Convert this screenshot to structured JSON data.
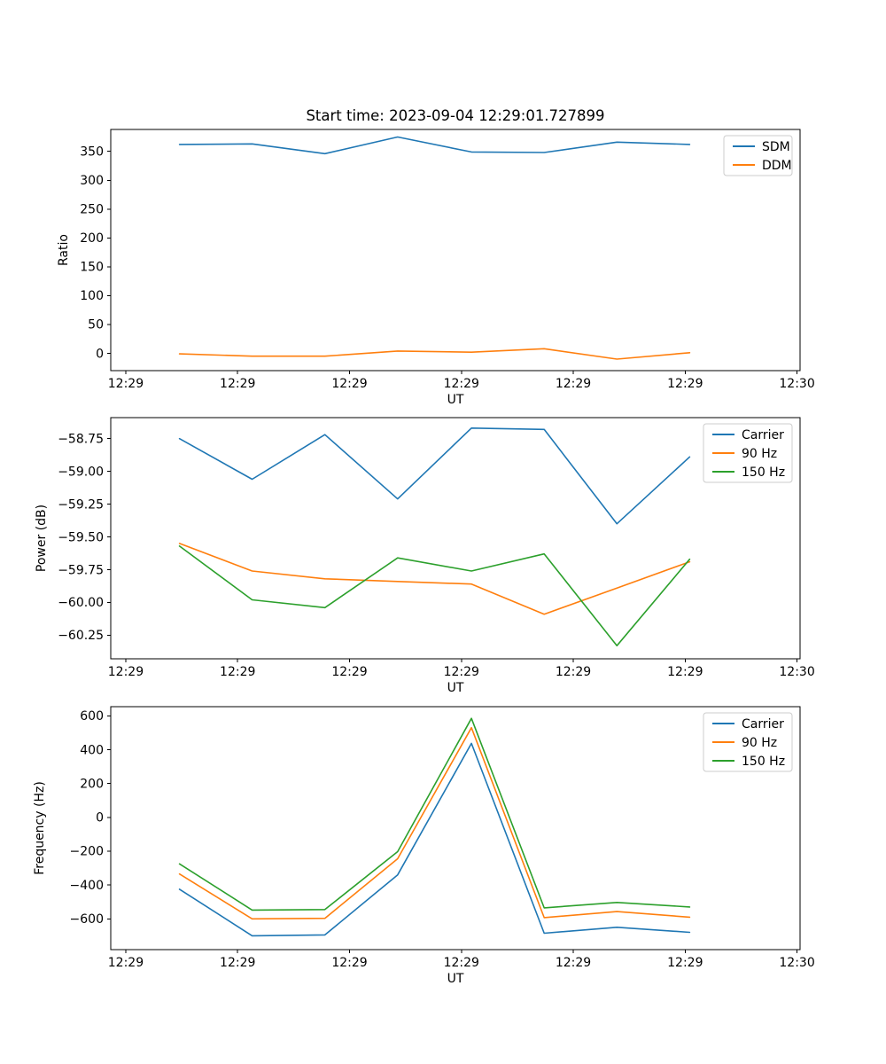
{
  "figure": {
    "title": "Start time: 2023-09-04 12:29:01.727899",
    "background": "#ffffff",
    "axis_color": "#000000",
    "legend_border_color": "#cccccc",
    "series_colors": {
      "blue": "#1f77b4",
      "orange": "#ff7f0e",
      "green": "#2ca02c"
    }
  },
  "x_axis": {
    "label": "UT",
    "tick_seconds": [
      0,
      10,
      20,
      30,
      40,
      50,
      60
    ],
    "tick_labels": [
      "12:29",
      "12:29",
      "12:29",
      "12:29",
      "12:29",
      "12:29",
      "12:30"
    ]
  },
  "chart_data": [
    {
      "id": "ratio",
      "type": "line",
      "ylabel": "Ratio",
      "xlabel": "UT",
      "ylim": [
        -30,
        388
      ],
      "xlim_seconds": [
        0,
        60
      ],
      "grid": false,
      "legend_position": "upper right",
      "yticks": [
        {
          "v": 0,
          "label": "0"
        },
        {
          "v": 50,
          "label": "50"
        },
        {
          "v": 100,
          "label": "100"
        },
        {
          "v": 150,
          "label": "150"
        },
        {
          "v": 200,
          "label": "200"
        },
        {
          "v": 250,
          "label": "250"
        },
        {
          "v": 300,
          "label": "300"
        },
        {
          "v": 350,
          "label": "350"
        }
      ],
      "x_seconds": [
        4.8,
        11.3,
        17.8,
        24.3,
        30.9,
        37.4,
        43.9,
        50.4
      ],
      "series": [
        {
          "name": "SDM",
          "color": "#1f77b4",
          "values": [
            362,
            363,
            346,
            375,
            349,
            348,
            366,
            362
          ]
        },
        {
          "name": "DDM",
          "color": "#ff7f0e",
          "values": [
            -1,
            -5,
            -5,
            4,
            2,
            8,
            -10,
            1
          ]
        }
      ]
    },
    {
      "id": "power",
      "type": "line",
      "ylabel": "Power (dB)",
      "xlabel": "UT",
      "ylim": [
        -60.43,
        -58.59
      ],
      "xlim_seconds": [
        0,
        60
      ],
      "grid": false,
      "legend_position": "upper right",
      "yticks": [
        {
          "v": -58.75,
          "label": "−58.75"
        },
        {
          "v": -59.0,
          "label": "−59.00"
        },
        {
          "v": -59.25,
          "label": "−59.25"
        },
        {
          "v": -59.5,
          "label": "−59.50"
        },
        {
          "v": -59.75,
          "label": "−59.75"
        },
        {
          "v": -60.0,
          "label": "−60.00"
        },
        {
          "v": -60.25,
          "label": "−60.25"
        }
      ],
      "x_seconds": [
        4.8,
        11.3,
        17.8,
        24.3,
        30.9,
        37.4,
        43.9,
        50.4
      ],
      "series": [
        {
          "name": "Carrier",
          "color": "#1f77b4",
          "values": [
            -58.75,
            -59.06,
            -58.72,
            -59.21,
            -58.67,
            -58.68,
            -59.4,
            -58.89
          ]
        },
        {
          "name": "90 Hz",
          "color": "#ff7f0e",
          "values": [
            -59.55,
            -59.76,
            -59.82,
            -59.84,
            -59.86,
            -60.09,
            -59.89,
            -59.69
          ]
        },
        {
          "name": "150 Hz",
          "color": "#2ca02c",
          "values": [
            -59.57,
            -59.98,
            -60.04,
            -59.66,
            -59.76,
            -59.63,
            -60.33,
            -59.67
          ]
        }
      ]
    },
    {
      "id": "frequency",
      "type": "line",
      "ylabel": "Frequency (Hz)",
      "xlabel": "UT",
      "ylim": [
        -782,
        654
      ],
      "xlim_seconds": [
        0,
        60
      ],
      "grid": false,
      "legend_position": "upper right",
      "yticks": [
        {
          "v": 600,
          "label": "600"
        },
        {
          "v": 400,
          "label": "400"
        },
        {
          "v": 200,
          "label": "200"
        },
        {
          "v": 0,
          "label": "0"
        },
        {
          "v": -200,
          "label": "−200"
        },
        {
          "v": -400,
          "label": "−400"
        },
        {
          "v": -600,
          "label": "−600"
        }
      ],
      "x_seconds": [
        4.8,
        11.3,
        17.8,
        24.3,
        30.9,
        37.4,
        43.9,
        50.4
      ],
      "series": [
        {
          "name": "Carrier",
          "color": "#1f77b4",
          "values": [
            -425,
            -700,
            -695,
            -340,
            437,
            -685,
            -650,
            -680
          ]
        },
        {
          "name": "90 Hz",
          "color": "#ff7f0e",
          "values": [
            -335,
            -600,
            -597,
            -245,
            530,
            -593,
            -557,
            -590
          ]
        },
        {
          "name": "150 Hz",
          "color": "#2ca02c",
          "values": [
            -275,
            -548,
            -545,
            -203,
            585,
            -535,
            -503,
            -530
          ]
        }
      ]
    }
  ]
}
